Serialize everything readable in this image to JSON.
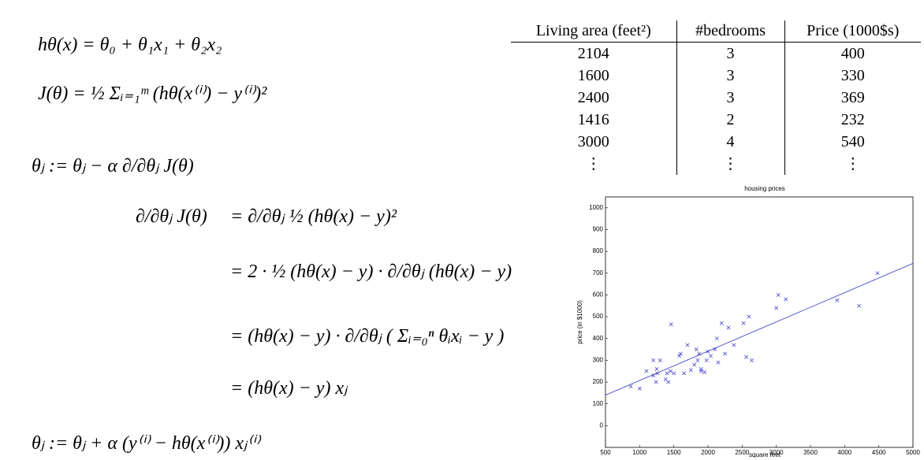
{
  "equations": {
    "hypothesis": "hθ(x) = θ₀ + θ₁x₁ + θ₂x₂",
    "cost": "J(θ) = ½ Σᵢ₌₁ᵐ (hθ(x⁽ⁱ⁾) − y⁽ⁱ⁾)²",
    "update": "θⱼ := θⱼ − α ∂/∂θⱼ J(θ)",
    "derivation_lhs": "∂/∂θⱼ J(θ)",
    "derivation_steps": [
      "=  ∂/∂θⱼ ½ (hθ(x) − y)²",
      "=  2 · ½ (hθ(x) − y) · ∂/∂θⱼ (hθ(x) − y)",
      "=  (hθ(x) − y) · ∂/∂θⱼ ( Σᵢ₌₀ⁿ θᵢxᵢ − y )",
      "=  (hθ(x) − y) xⱼ"
    ],
    "lms_rule": "θⱼ := θⱼ + α (y⁽ⁱ⁾ − hθ(x⁽ⁱ⁾)) xⱼ⁽ⁱ⁾"
  },
  "table": {
    "header": [
      "Living area (feet²)",
      "#bedrooms",
      "Price (1000$s)"
    ],
    "rows": [
      [
        "2104",
        "3",
        "400"
      ],
      [
        "1600",
        "3",
        "330"
      ],
      [
        "2400",
        "3",
        "369"
      ],
      [
        "1416",
        "2",
        "232"
      ],
      [
        "3000",
        "4",
        "540"
      ],
      [
        "⋮",
        "⋮",
        "⋮"
      ]
    ]
  },
  "chart_data": {
    "type": "scatter",
    "title": "housing prices",
    "x_label": "square feet",
    "y_label": "price (in $1000)",
    "xlim": [
      500,
      5000
    ],
    "ylim": [
      -100,
      1050
    ],
    "xticks": [
      500,
      1000,
      1500,
      2000,
      2500,
      3000,
      3500,
      4000,
      4500,
      5000
    ],
    "yticks": [
      0,
      100,
      200,
      300,
      400,
      500,
      600,
      700,
      800,
      900,
      1000
    ],
    "color": "#3333cc",
    "points": {
      "x": [
        870,
        1000,
        1100,
        1200,
        1200,
        1240,
        1250,
        1260,
        1300,
        1380,
        1400,
        1420,
        1450,
        1460,
        1500,
        1580,
        1600,
        1650,
        1700,
        1750,
        1800,
        1830,
        1850,
        1870,
        1900,
        1900,
        1950,
        1980,
        2000,
        2040,
        2100,
        2130,
        2150,
        2200,
        2250,
        2300,
        2380,
        2520,
        2560,
        2600,
        2640,
        3000,
        3030,
        3140,
        3890,
        4210,
        4480
      ],
      "y": [
        180,
        170,
        250,
        300,
        230,
        200,
        260,
        240,
        300,
        212,
        240,
        200,
        250,
        465,
        240,
        320,
        330,
        240,
        370,
        255,
        280,
        350,
        300,
        330,
        260,
        250,
        245,
        300,
        340,
        320,
        350,
        400,
        290,
        470,
        330,
        450,
        370,
        470,
        315,
        500,
        300,
        540,
        600,
        580,
        575,
        550,
        700
      ]
    },
    "fit_line": {
      "x": [
        500,
        5000
      ],
      "y": [
        140,
        745
      ]
    }
  }
}
